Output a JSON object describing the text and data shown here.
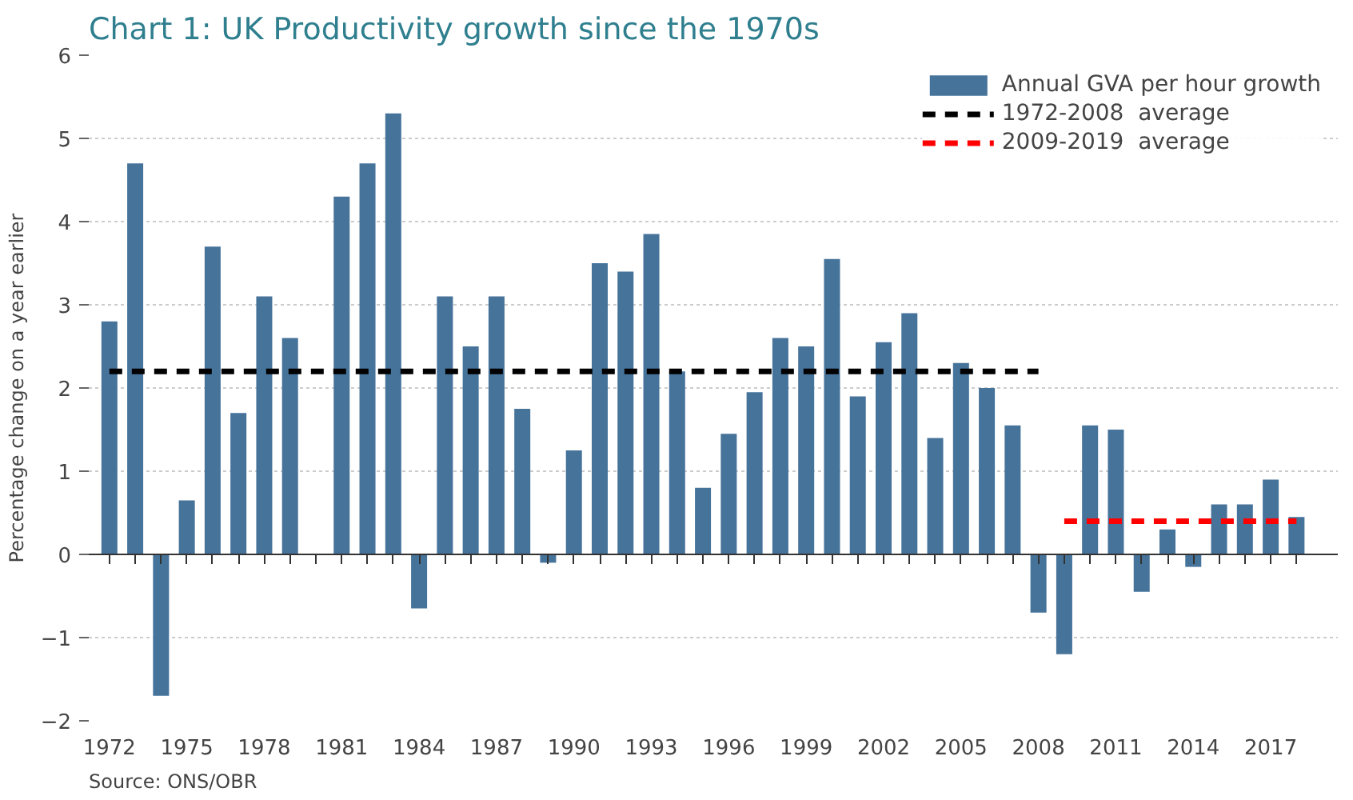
{
  "chart_data": {
    "type": "bar",
    "title": "Chart 1: UK Productivity growth since the 1970s",
    "ylabel": "Percentage change on a year earlier",
    "categories": [
      "1972",
      null,
      null,
      "1975",
      null,
      null,
      "1978",
      null,
      null,
      "1981",
      null,
      null,
      "1984",
      null,
      null,
      "1987",
      null,
      null,
      "1990",
      null,
      null,
      "1993",
      null,
      null,
      "1996",
      null,
      null,
      "1999",
      null,
      null,
      "2002",
      null,
      null,
      "2005",
      null,
      null,
      "2008",
      null,
      null,
      "2011",
      null,
      null,
      "2014",
      null,
      null,
      "2017",
      null
    ],
    "series": [
      {
        "name": "Annual GVA per hour growth",
        "color": "#46739a",
        "values": [
          2.8,
          4.7,
          -1.7,
          0.65,
          3.7,
          1.7,
          3.1,
          2.6,
          0,
          4.3,
          4.7,
          5.3,
          -0.65,
          3.1,
          2.5,
          3.1,
          1.75,
          -0.1,
          1.25,
          3.5,
          3.4,
          3.85,
          2.2,
          0.8,
          1.45,
          1.95,
          2.6,
          2.5,
          3.55,
          1.9,
          2.55,
          2.9,
          1.4,
          2.3,
          2.0,
          1.55,
          -0.7,
          -1.2,
          1.55,
          1.5,
          -0.45,
          0.3,
          -0.15,
          0.6,
          0.6,
          0.9,
          0.45
        ]
      },
      {
        "name": "1972-2008  average",
        "type": "line",
        "line_style": "dashed",
        "color": "#000000",
        "values": [
          2.2,
          2.2,
          2.2,
          2.2,
          2.2,
          2.2,
          2.2,
          2.2,
          2.2,
          2.2,
          2.2,
          2.2,
          2.2,
          2.2,
          2.2,
          2.2,
          2.2,
          2.2,
          2.2,
          2.2,
          2.2,
          2.2,
          2.2,
          2.2,
          2.2,
          2.2,
          2.2,
          2.2,
          2.2,
          2.2,
          2.2,
          2.2,
          2.2,
          2.2,
          2.2,
          2.2,
          2.2,
          null,
          null,
          null,
          null,
          null,
          null,
          null,
          null,
          null,
          null
        ]
      },
      {
        "name": "2009-2019  average",
        "type": "line",
        "line_style": "dashed",
        "color": "#ff0000",
        "values": [
          null,
          null,
          null,
          null,
          null,
          null,
          null,
          null,
          null,
          null,
          null,
          null,
          null,
          null,
          null,
          null,
          null,
          null,
          null,
          null,
          null,
          null,
          null,
          null,
          null,
          null,
          null,
          null,
          null,
          null,
          null,
          null,
          null,
          null,
          null,
          null,
          null,
          0.4,
          0.4,
          0.4,
          0.4,
          0.4,
          0.4,
          0.4,
          0.4,
          0.4,
          0.4
        ]
      }
    ],
    "ylim": [
      -2,
      6
    ],
    "yticks": [
      -2,
      -1,
      0,
      1,
      2,
      3,
      4,
      5,
      6
    ],
    "grid": "y",
    "legend": "top right",
    "annotations": [
      "Source: ONS/OBR"
    ]
  }
}
